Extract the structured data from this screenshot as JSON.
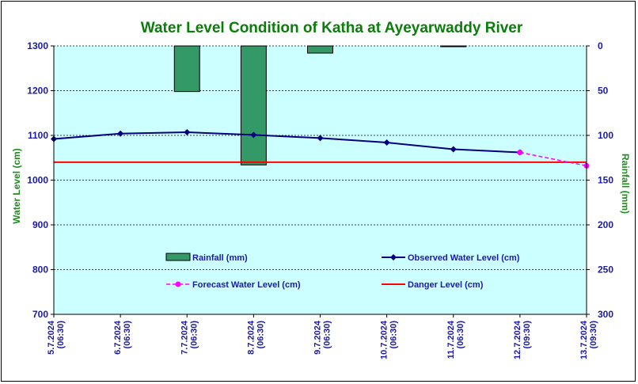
{
  "chart_data": {
    "type": "line",
    "title": "Water Level Condition of Katha at Ayeyarwaddy River",
    "ylabel_left": "Water Level (cm)",
    "ylabel_right": "Rainfall (mm)",
    "ylim_left": [
      700,
      1300
    ],
    "yticks_left": [
      700,
      800,
      900,
      1000,
      1100,
      1200,
      1300
    ],
    "ylim_right": [
      0,
      300
    ],
    "yticks_right": [
      0,
      50,
      100,
      150,
      200,
      250,
      300
    ],
    "right_axis_inverted": true,
    "grid": "horizontal dashed",
    "background_color": "#ccffff",
    "categories": [
      "5.7.2024 (06:30)",
      "6.7.2024 (06:30)",
      "7.7.2024 (06:30)",
      "8.7.2024 (06:30)",
      "9.7.2024 (06:30)",
      "10.7.2024 (06:30)",
      "11.7.2024 (06:30)",
      "12.7.2024 (09:30)",
      "13.7.2024 (09:30)"
    ],
    "x_tick_lines": [
      [
        "5.7.2024",
        "(06:30)"
      ],
      [
        "6.7.2024",
        "(06:30)"
      ],
      [
        "7.7.2024",
        "(06:30)"
      ],
      [
        "8.7.2024",
        "(06:30)"
      ],
      [
        "9.7.2024",
        "(06:30)"
      ],
      [
        "10.7.2024",
        "(06:30)"
      ],
      [
        "11.7.2024",
        "(06:30)"
      ],
      [
        "12.7.2024",
        "(09:30)"
      ],
      [
        "13.7.2024",
        "(09:30)"
      ]
    ],
    "series": [
      {
        "name": "Rainfall (mm)",
        "kind": "bar",
        "axis": "right",
        "color": "#339966",
        "values": [
          0,
          0,
          51,
          133,
          8,
          0,
          0.5,
          null,
          null
        ]
      },
      {
        "name": "Observed Water Level (cm)",
        "kind": "line",
        "axis": "left",
        "color": "#000080",
        "marker": "diamond",
        "values": [
          1092,
          1104,
          1107,
          1101,
          1094,
          1084,
          1069,
          1062,
          null
        ]
      },
      {
        "name": "Forecast Water Level (cm)",
        "kind": "dashed-line",
        "axis": "left",
        "color": "#ff00ff",
        "marker": "circle",
        "values": [
          null,
          null,
          null,
          null,
          null,
          null,
          null,
          1062,
          1032
        ]
      },
      {
        "name": "Danger Level (cm)",
        "kind": "constant-line",
        "axis": "left",
        "color": "#ff0000",
        "value": 1040
      }
    ],
    "legend": [
      {
        "label": "Rainfall (mm)",
        "kind": "bar"
      },
      {
        "label": "Observed Water Level (cm)",
        "kind": "line"
      },
      {
        "label": "Forecast Water Level (cm)",
        "kind": "dashed-line"
      },
      {
        "label": "Danger Level (cm)",
        "kind": "constant-line"
      }
    ],
    "legend_placement": "inside lower area, two columns"
  }
}
